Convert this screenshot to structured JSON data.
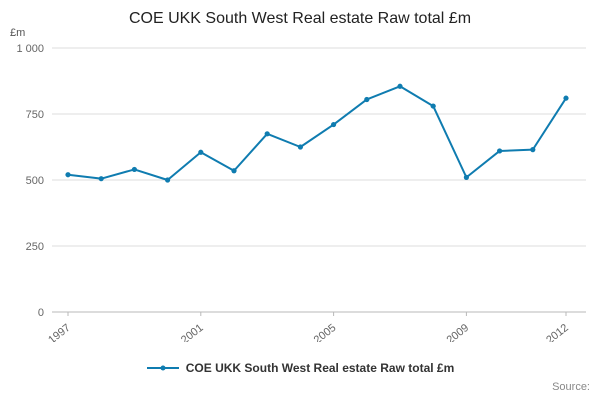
{
  "chart_data": {
    "type": "line",
    "title": "COE UKK South West Real estate Raw total £m",
    "xlabel": "",
    "ylabel": "£m",
    "x": [
      1997,
      1998,
      1999,
      2000,
      2001,
      2002,
      2003,
      2004,
      2005,
      2006,
      2007,
      2008,
      2009,
      2010,
      2011,
      2012
    ],
    "values": [
      520,
      505,
      540,
      500,
      605,
      535,
      675,
      625,
      710,
      805,
      855,
      780,
      510,
      610,
      615,
      810
    ],
    "series_name": "COE UKK South West Real estate Raw total £m",
    "ylim": [
      0,
      1000
    ],
    "yticks": [
      0,
      250,
      500,
      750,
      1000
    ],
    "ytick_labels": [
      "0",
      "250",
      "500",
      "750",
      "1 000"
    ],
    "xtick_years": [
      1997,
      2001,
      2005,
      2009,
      2012
    ],
    "grid": true,
    "legend_position": "bottom",
    "line_color": "#0f7cb0",
    "grid_color": "#dcdcdc",
    "axis_color": "#b8b8b8",
    "tick_text_color": "#666666"
  },
  "legend": {
    "label": "COE UKK South West Real estate Raw total £m"
  },
  "source": {
    "label": "Source:"
  }
}
